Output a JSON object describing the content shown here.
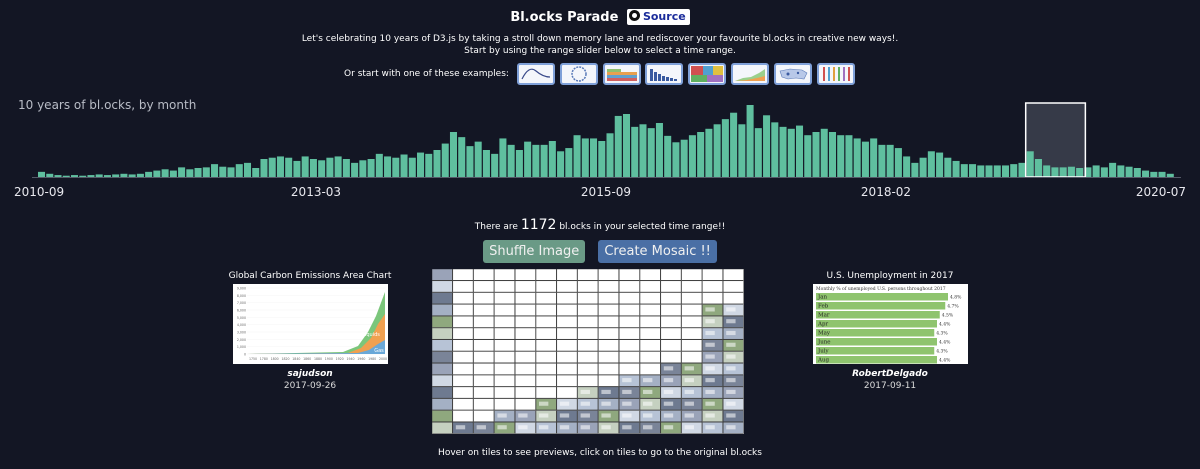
{
  "header": {
    "title": "Bl.ocks Parade",
    "source_label": "Source",
    "intro_line1": "Let's celebrating 10 years of D3.js by taking a stroll down memory lane and rediscover your favourite bl.ocks in creative new ways!.",
    "intro_line2": "Start by using the range slider below to select a time range.",
    "examples_label": "Or start with one of these examples:"
  },
  "examples": [
    {
      "icon": "curve-thumbnail-icon"
    },
    {
      "icon": "circle-thumbnail-icon"
    },
    {
      "icon": "colorbars-thumbnail-icon"
    },
    {
      "icon": "barchart-thumbnail-icon"
    },
    {
      "icon": "treemap-thumbnail-icon"
    },
    {
      "icon": "area-thumbnail-icon"
    },
    {
      "icon": "usmap-thumbnail-icon"
    },
    {
      "icon": "stripes-thumbnail-icon"
    }
  ],
  "colors": {
    "background": "#131624",
    "bar": "#5fbf9f",
    "brush_fill": "#363a48",
    "brush_stroke": "#ffffff",
    "shuffle_button": "#6a9a86",
    "mosaic_button": "#4a6fa5",
    "source_badge_text": "#1a2b9a"
  },
  "chart_data": {
    "type": "bar",
    "title": "10 years of bl.ocks, by month",
    "x_tick_labels": [
      "2010-09",
      "2013-03",
      "2015-09",
      "2018-02",
      "2020-07"
    ],
    "values": [
      8,
      5,
      3,
      2,
      3,
      2,
      3,
      4,
      3,
      4,
      5,
      4,
      5,
      8,
      10,
      12,
      10,
      15,
      12,
      14,
      15,
      20,
      16,
      15,
      20,
      22,
      14,
      28,
      30,
      32,
      30,
      25,
      32,
      28,
      26,
      30,
      32,
      28,
      22,
      26,
      28,
      36,
      32,
      30,
      35,
      30,
      38,
      36,
      42,
      52,
      70,
      62,
      48,
      55,
      42,
      36,
      60,
      50,
      42,
      55,
      50,
      50,
      56,
      40,
      45,
      65,
      60,
      60,
      56,
      68,
      95,
      98,
      78,
      82,
      76,
      84,
      64,
      54,
      58,
      65,
      70,
      75,
      82,
      90,
      100,
      82,
      112,
      76,
      96,
      85,
      78,
      75,
      80,
      65,
      70,
      75,
      70,
      65,
      65,
      60,
      55,
      60,
      50,
      50,
      45,
      32,
      22,
      30,
      40,
      38,
      30,
      25,
      20,
      20,
      18,
      18,
      18,
      18,
      20,
      22,
      40,
      28,
      18,
      15,
      15,
      16,
      14,
      15,
      18,
      15,
      22,
      18,
      16,
      14,
      10,
      8,
      8,
      5
    ],
    "brush_range": [
      120,
      126
    ],
    "grid": false,
    "xlabel": "",
    "ylabel": ""
  },
  "selection": {
    "text_before": "There are",
    "count": "1172",
    "text_after": "bl.ocks in your selected time range!!"
  },
  "buttons": {
    "shuffle": "Shuffle Image",
    "mosaic": "Create Mosaic !!"
  },
  "left_card": {
    "title": "Global Carbon Emissions Area Chart",
    "author": "sajudson",
    "date": "2017-09-26",
    "y_ticks": [
      "9,000",
      "8,000",
      "7,000",
      "6,000",
      "5,000",
      "4,000",
      "3,000",
      "2,000",
      "1,000",
      "0"
    ],
    "x_ticks": [
      "1750",
      "1780",
      "1800",
      "1820",
      "1840",
      "1860",
      "1880",
      "1900",
      "1920",
      "1940",
      "1960",
      "1980",
      "2000"
    ],
    "series_labels": [
      "Liquids",
      "Gas"
    ]
  },
  "right_card": {
    "title": "U.S. Unemployment in 2017",
    "author": "RobertDelgado",
    "date": "2017-09-11",
    "subtitle": "Monthly % of unemployed U.S. persons throughout 2017",
    "rows": [
      {
        "month": "Jan",
        "value": "4.8%",
        "pct": 4.8
      },
      {
        "month": "Feb",
        "value": "4.7%",
        "pct": 4.7
      },
      {
        "month": "Mar",
        "value": "4.5%",
        "pct": 4.5
      },
      {
        "month": "Apr",
        "value": "4.4%",
        "pct": 4.4
      },
      {
        "month": "May",
        "value": "4.3%",
        "pct": 4.3
      },
      {
        "month": "June",
        "value": "4.4%",
        "pct": 4.4
      },
      {
        "month": "July",
        "value": "4.3%",
        "pct": 4.3
      },
      {
        "month": "Aug",
        "value": "4.4%",
        "pct": 4.4
      }
    ]
  },
  "mosaic": {
    "rows": 14,
    "cols": 15
  },
  "footer": {
    "hover_note": "Hover on tiles to see previews, click on tiles to go to the original bl.ocks"
  }
}
